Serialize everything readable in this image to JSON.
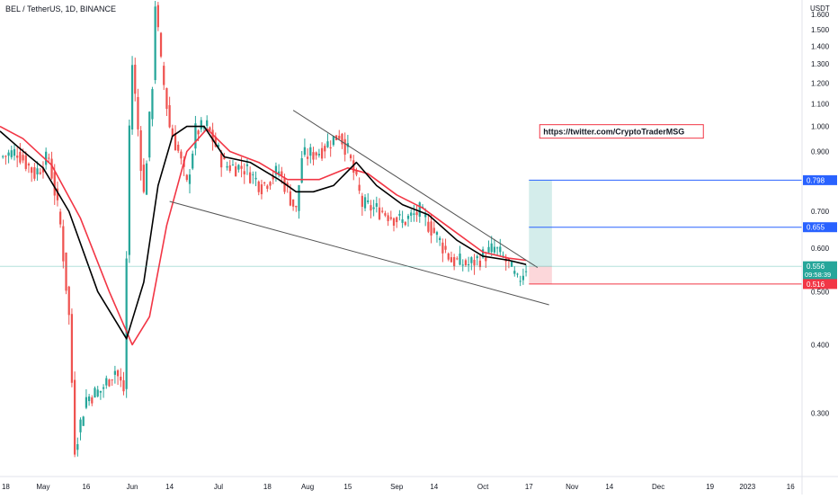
{
  "chart_data": {
    "type": "candlestick",
    "title": "BEL / TetherUS, 1D, BINANCE",
    "y_unit": "USDT",
    "y_scale": "log",
    "ylim": [
      0.23,
      1.7
    ],
    "y_ticks": [
      "0.300",
      "0.400",
      "0.500",
      "0.600",
      "0.700",
      "0.900",
      "1.000",
      "1.100",
      "1.200",
      "1.300",
      "1.400",
      "1.500",
      "1.600"
    ],
    "x_start": "2022-04-16",
    "x_end": "2023-01-20",
    "x_ticks": [
      {
        "label": "18",
        "date": "2022-04-18"
      },
      {
        "label": "May",
        "date": "2022-05-01"
      },
      {
        "label": "16",
        "date": "2022-05-16"
      },
      {
        "label": "Jun",
        "date": "2022-06-01"
      },
      {
        "label": "14",
        "date": "2022-06-14"
      },
      {
        "label": "Jul",
        "date": "2022-07-01"
      },
      {
        "label": "18",
        "date": "2022-07-18"
      },
      {
        "label": "Aug",
        "date": "2022-08-01"
      },
      {
        "label": "15",
        "date": "2022-08-15"
      },
      {
        "label": "Sep",
        "date": "2022-09-01"
      },
      {
        "label": "14",
        "date": "2022-09-14"
      },
      {
        "label": "Oct",
        "date": "2022-10-01"
      },
      {
        "label": "17",
        "date": "2022-10-17"
      },
      {
        "label": "Nov",
        "date": "2022-11-01"
      },
      {
        "label": "14",
        "date": "2022-11-14"
      },
      {
        "label": "Dec",
        "date": "2022-12-01"
      },
      {
        "label": "19",
        "date": "2022-12-19"
      },
      {
        "label": "2023",
        "date": "2023-01-01"
      },
      {
        "label": "16",
        "date": "2023-01-16"
      }
    ],
    "closes": [
      {
        "date": "2022-04-16",
        "close": 0.88
      },
      {
        "date": "2022-04-22",
        "close": 0.9
      },
      {
        "date": "2022-04-28",
        "close": 0.82
      },
      {
        "date": "2022-05-03",
        "close": 0.88
      },
      {
        "date": "2022-05-07",
        "close": 0.66
      },
      {
        "date": "2022-05-10",
        "close": 0.45
      },
      {
        "date": "2022-05-12",
        "close": 0.26
      },
      {
        "date": "2022-05-16",
        "close": 0.32
      },
      {
        "date": "2022-05-21",
        "close": 0.33
      },
      {
        "date": "2022-05-26",
        "close": 0.36
      },
      {
        "date": "2022-05-29",
        "close": 0.33
      },
      {
        "date": "2022-05-31",
        "close": 1.0
      },
      {
        "date": "2022-06-01",
        "close": 1.3
      },
      {
        "date": "2022-06-05",
        "close": 0.75
      },
      {
        "date": "2022-06-08",
        "close": 1.2
      },
      {
        "date": "2022-06-09",
        "close": 1.68
      },
      {
        "date": "2022-06-11",
        "close": 1.3
      },
      {
        "date": "2022-06-14",
        "close": 1.0
      },
      {
        "date": "2022-06-17",
        "close": 0.9
      },
      {
        "date": "2022-06-20",
        "close": 0.78
      },
      {
        "date": "2022-06-23",
        "close": 0.98
      },
      {
        "date": "2022-06-27",
        "close": 1.0
      },
      {
        "date": "2022-07-03",
        "close": 0.85
      },
      {
        "date": "2022-07-10",
        "close": 0.84
      },
      {
        "date": "2022-07-16",
        "close": 0.78
      },
      {
        "date": "2022-07-22",
        "close": 0.83
      },
      {
        "date": "2022-07-28",
        "close": 0.7
      },
      {
        "date": "2022-07-30",
        "close": 0.88
      },
      {
        "date": "2022-08-05",
        "close": 0.9
      },
      {
        "date": "2022-08-12",
        "close": 0.97
      },
      {
        "date": "2022-08-15",
        "close": 0.9
      },
      {
        "date": "2022-08-20",
        "close": 0.72
      },
      {
        "date": "2022-08-27",
        "close": 0.7
      },
      {
        "date": "2022-09-03",
        "close": 0.67
      },
      {
        "date": "2022-09-09",
        "close": 0.7
      },
      {
        "date": "2022-09-15",
        "close": 0.63
      },
      {
        "date": "2022-09-20",
        "close": 0.57
      },
      {
        "date": "2022-09-26",
        "close": 0.56
      },
      {
        "date": "2022-10-01",
        "close": 0.58
      },
      {
        "date": "2022-10-05",
        "close": 0.6
      },
      {
        "date": "2022-10-10",
        "close": 0.56
      },
      {
        "date": "2022-10-13",
        "close": 0.52
      },
      {
        "date": "2022-10-16",
        "close": 0.556
      }
    ],
    "ema_fast": [
      {
        "date": "2022-04-16",
        "value": 0.98
      },
      {
        "date": "2022-04-22",
        "value": 0.92
      },
      {
        "date": "2022-05-01",
        "value": 0.84
      },
      {
        "date": "2022-05-10",
        "value": 0.7
      },
      {
        "date": "2022-05-20",
        "value": 0.5
      },
      {
        "date": "2022-05-30",
        "value": 0.41
      },
      {
        "date": "2022-06-05",
        "value": 0.52
      },
      {
        "date": "2022-06-10",
        "value": 0.78
      },
      {
        "date": "2022-06-15",
        "value": 0.96
      },
      {
        "date": "2022-06-20",
        "value": 1.0
      },
      {
        "date": "2022-06-26",
        "value": 1.0
      },
      {
        "date": "2022-07-03",
        "value": 0.88
      },
      {
        "date": "2022-07-12",
        "value": 0.86
      },
      {
        "date": "2022-07-22",
        "value": 0.8
      },
      {
        "date": "2022-07-28",
        "value": 0.76
      },
      {
        "date": "2022-08-03",
        "value": 0.76
      },
      {
        "date": "2022-08-10",
        "value": 0.78
      },
      {
        "date": "2022-08-18",
        "value": 0.86
      },
      {
        "date": "2022-08-25",
        "value": 0.78
      },
      {
        "date": "2022-09-03",
        "value": 0.72
      },
      {
        "date": "2022-09-12",
        "value": 0.69
      },
      {
        "date": "2022-09-22",
        "value": 0.62
      },
      {
        "date": "2022-10-01",
        "value": 0.58
      },
      {
        "date": "2022-10-10",
        "value": 0.57
      },
      {
        "date": "2022-10-16",
        "value": 0.56
      }
    ],
    "ema_slow": [
      {
        "date": "2022-04-16",
        "value": 1.0
      },
      {
        "date": "2022-04-24",
        "value": 0.95
      },
      {
        "date": "2022-05-04",
        "value": 0.85
      },
      {
        "date": "2022-05-14",
        "value": 0.68
      },
      {
        "date": "2022-05-24",
        "value": 0.5
      },
      {
        "date": "2022-06-01",
        "value": 0.4
      },
      {
        "date": "2022-06-07",
        "value": 0.45
      },
      {
        "date": "2022-06-13",
        "value": 0.66
      },
      {
        "date": "2022-06-20",
        "value": 0.9
      },
      {
        "date": "2022-06-27",
        "value": 0.99
      },
      {
        "date": "2022-07-05",
        "value": 0.9
      },
      {
        "date": "2022-07-15",
        "value": 0.86
      },
      {
        "date": "2022-07-25",
        "value": 0.8
      },
      {
        "date": "2022-08-05",
        "value": 0.8
      },
      {
        "date": "2022-08-15",
        "value": 0.84
      },
      {
        "date": "2022-08-22",
        "value": 0.82
      },
      {
        "date": "2022-09-01",
        "value": 0.75
      },
      {
        "date": "2022-09-10",
        "value": 0.71
      },
      {
        "date": "2022-09-20",
        "value": 0.65
      },
      {
        "date": "2022-10-01",
        "value": 0.59
      },
      {
        "date": "2022-10-10",
        "value": 0.575
      },
      {
        "date": "2022-10-16",
        "value": 0.57
      }
    ],
    "trendlines": [
      {
        "name": "upper",
        "from": {
          "date": "2022-07-27",
          "value": 1.07
        },
        "to": {
          "date": "2022-10-20",
          "value": 0.553
        }
      },
      {
        "name": "lower",
        "from": {
          "date": "2022-06-14",
          "value": 0.73
        },
        "to": {
          "date": "2022-10-24",
          "value": 0.473
        }
      }
    ],
    "position": {
      "start_date": "2022-10-17",
      "end_date": "2022-10-25",
      "entry": 0.556,
      "target": 0.798,
      "stop": 0.516
    },
    "price_levels": [
      {
        "value": 0.798,
        "label": "0.798",
        "color": "#2962ff"
      },
      {
        "value": 0.655,
        "label": "0.655",
        "color": "#2962ff"
      },
      {
        "value": 0.556,
        "label": "0.556",
        "sublabel": "09:58:39",
        "color": "#26a69a"
      },
      {
        "value": 0.516,
        "label": "0.516",
        "color": "#f23645"
      }
    ],
    "annotation": {
      "text": "https://twitter.com/CryptoTraderMSG",
      "date": "2022-10-22",
      "value": 0.97
    },
    "colors": {
      "up": "#26a69a",
      "down": "#ef5350",
      "ema_fast": "#000000",
      "ema_slow": "#f23645",
      "trendline": "#555555",
      "level": "#2962ff",
      "reward": "#26a69a",
      "risk": "#f23645"
    }
  }
}
